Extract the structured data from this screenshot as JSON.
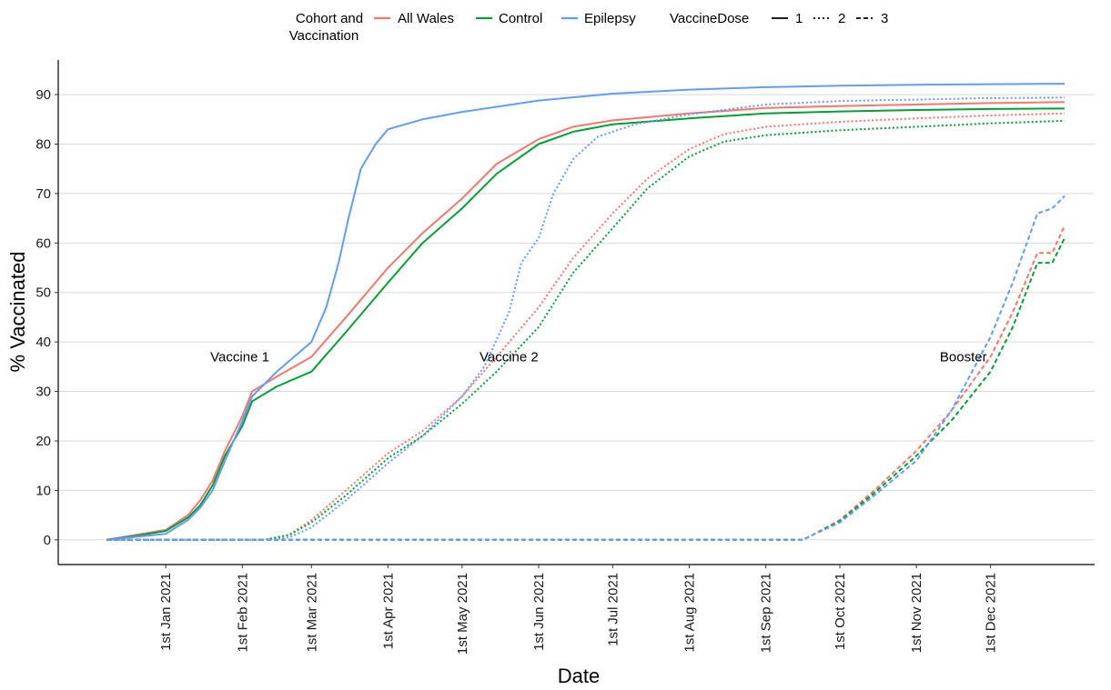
{
  "chart_data": {
    "type": "line",
    "xlabel": "Date",
    "ylabel": "% Vaccinated",
    "x_range": [
      "2020-12-08",
      "2021-12-31"
    ],
    "ylim": [
      -5,
      97
    ],
    "y_ticks": [
      0,
      10,
      20,
      30,
      40,
      50,
      60,
      70,
      80,
      90
    ],
    "x_ticks": [
      {
        "date": "2021-01-01",
        "label": "1st Jan 2021"
      },
      {
        "date": "2021-02-01",
        "label": "1st Feb 2021"
      },
      {
        "date": "2021-03-01",
        "label": "1st Mar 2021"
      },
      {
        "date": "2021-04-01",
        "label": "1st Apr 2021"
      },
      {
        "date": "2021-05-01",
        "label": "1st May 2021"
      },
      {
        "date": "2021-06-01",
        "label": "1st Jun 2021"
      },
      {
        "date": "2021-07-01",
        "label": "1st Jul 2021"
      },
      {
        "date": "2021-08-01",
        "label": "1st Aug 2021"
      },
      {
        "date": "2021-09-01",
        "label": "1st Sep 2021"
      },
      {
        "date": "2021-10-01",
        "label": "1st Oct 2021"
      },
      {
        "date": "2021-11-01",
        "label": "1st Nov 2021"
      },
      {
        "date": "2021-12-01",
        "label": "1st Dec 2021"
      }
    ],
    "grid": "horizontal",
    "legend": {
      "position": "top",
      "cohort_title": "Cohort and Vaccination",
      "cohorts": [
        {
          "name": "All Wales",
          "color": "#F8766D"
        },
        {
          "name": "Control",
          "color": "#00A035"
        },
        {
          "name": "Epilepsy",
          "color": "#619CFF"
        }
      ],
      "dose_title": "VaccineDose",
      "doses": [
        {
          "name": "1",
          "dash": "solid"
        },
        {
          "name": "2",
          "dash": "dotted"
        },
        {
          "name": "3",
          "dash": "dashed"
        }
      ]
    },
    "annotations": [
      {
        "text": "Vaccine 1",
        "date": "2021-01-31",
        "y": 37
      },
      {
        "text": "Vaccine 2",
        "date": "2021-05-20",
        "y": 37
      },
      {
        "text": "Booster",
        "date": "2021-11-20",
        "y": 37
      }
    ],
    "series": [
      {
        "cohort": "All Wales",
        "dose": "1",
        "color": "#F8766D",
        "dash": "solid",
        "points": [
          [
            "2020-12-08",
            0
          ],
          [
            "2020-12-20",
            1
          ],
          [
            "2021-01-01",
            2
          ],
          [
            "2021-01-10",
            5
          ],
          [
            "2021-01-15",
            8
          ],
          [
            "2021-01-20",
            12
          ],
          [
            "2021-01-25",
            18
          ],
          [
            "2021-02-01",
            25
          ],
          [
            "2021-02-05",
            30
          ],
          [
            "2021-02-15",
            33
          ],
          [
            "2021-03-01",
            37
          ],
          [
            "2021-03-15",
            45
          ],
          [
            "2021-04-01",
            55
          ],
          [
            "2021-04-15",
            62
          ],
          [
            "2021-05-01",
            69
          ],
          [
            "2021-05-15",
            76
          ],
          [
            "2021-06-01",
            81
          ],
          [
            "2021-06-15",
            83.5
          ],
          [
            "2021-07-01",
            84.8
          ],
          [
            "2021-08-01",
            86.2
          ],
          [
            "2021-09-01",
            87.3
          ],
          [
            "2021-10-01",
            87.7
          ],
          [
            "2021-11-01",
            88
          ],
          [
            "2021-12-01",
            88.3
          ],
          [
            "2021-12-31",
            88.5
          ]
        ]
      },
      {
        "cohort": "Control",
        "dose": "1",
        "color": "#00A035",
        "dash": "solid",
        "points": [
          [
            "2020-12-08",
            0
          ],
          [
            "2020-12-20",
            0.8
          ],
          [
            "2021-01-01",
            1.8
          ],
          [
            "2021-01-10",
            4.5
          ],
          [
            "2021-01-15",
            7
          ],
          [
            "2021-01-20",
            11
          ],
          [
            "2021-01-25",
            17
          ],
          [
            "2021-02-01",
            23
          ],
          [
            "2021-02-05",
            28
          ],
          [
            "2021-02-15",
            31
          ],
          [
            "2021-03-01",
            34
          ],
          [
            "2021-03-15",
            42
          ],
          [
            "2021-04-01",
            52
          ],
          [
            "2021-04-15",
            60
          ],
          [
            "2021-05-01",
            67
          ],
          [
            "2021-05-15",
            74
          ],
          [
            "2021-06-01",
            80
          ],
          [
            "2021-06-15",
            82.5
          ],
          [
            "2021-07-01",
            84
          ],
          [
            "2021-08-01",
            85.2
          ],
          [
            "2021-09-01",
            86.2
          ],
          [
            "2021-10-01",
            86.6
          ],
          [
            "2021-11-01",
            86.9
          ],
          [
            "2021-12-01",
            87.1
          ],
          [
            "2021-12-31",
            87.2
          ]
        ]
      },
      {
        "cohort": "Epilepsy",
        "dose": "1",
        "color": "#619CFF",
        "dash": "solid",
        "points": [
          [
            "2020-12-08",
            0
          ],
          [
            "2020-12-20",
            0.6
          ],
          [
            "2021-01-01",
            1.2
          ],
          [
            "2021-01-10",
            4
          ],
          [
            "2021-01-15",
            6.5
          ],
          [
            "2021-01-20",
            10
          ],
          [
            "2021-01-25",
            16
          ],
          [
            "2021-02-01",
            24
          ],
          [
            "2021-02-05",
            29
          ],
          [
            "2021-02-15",
            34
          ],
          [
            "2021-03-01",
            40
          ],
          [
            "2021-03-07",
            47
          ],
          [
            "2021-03-12",
            56
          ],
          [
            "2021-03-16",
            65
          ],
          [
            "2021-03-21",
            75
          ],
          [
            "2021-03-27",
            80
          ],
          [
            "2021-04-01",
            83
          ],
          [
            "2021-04-15",
            85
          ],
          [
            "2021-05-01",
            86.5
          ],
          [
            "2021-06-01",
            88.8
          ],
          [
            "2021-07-01",
            90.2
          ],
          [
            "2021-08-01",
            91
          ],
          [
            "2021-09-01",
            91.5
          ],
          [
            "2021-10-01",
            91.8
          ],
          [
            "2021-11-01",
            92
          ],
          [
            "2021-12-01",
            92.1
          ],
          [
            "2021-12-31",
            92.2
          ]
        ]
      },
      {
        "cohort": "All Wales",
        "dose": "2",
        "color": "#F8766D",
        "dash": "dotted",
        "points": [
          [
            "2020-12-08",
            0
          ],
          [
            "2021-02-10",
            0
          ],
          [
            "2021-02-20",
            1
          ],
          [
            "2021-03-01",
            4
          ],
          [
            "2021-03-15",
            10
          ],
          [
            "2021-04-01",
            17.5
          ],
          [
            "2021-04-15",
            22
          ],
          [
            "2021-05-01",
            29
          ],
          [
            "2021-05-15",
            37
          ],
          [
            "2021-06-01",
            47
          ],
          [
            "2021-06-15",
            57
          ],
          [
            "2021-07-01",
            66
          ],
          [
            "2021-07-15",
            73
          ],
          [
            "2021-08-01",
            79
          ],
          [
            "2021-08-15",
            82
          ],
          [
            "2021-09-01",
            83.5
          ],
          [
            "2021-10-01",
            84.5
          ],
          [
            "2021-11-01",
            85.2
          ],
          [
            "2021-12-01",
            85.8
          ],
          [
            "2021-12-31",
            86.2
          ]
        ]
      },
      {
        "cohort": "Control",
        "dose": "2",
        "color": "#00A035",
        "dash": "dotted",
        "points": [
          [
            "2020-12-08",
            0
          ],
          [
            "2021-02-10",
            0
          ],
          [
            "2021-02-20",
            1
          ],
          [
            "2021-03-01",
            3.5
          ],
          [
            "2021-03-15",
            9
          ],
          [
            "2021-04-01",
            16.5
          ],
          [
            "2021-04-15",
            21
          ],
          [
            "2021-05-01",
            27.5
          ],
          [
            "2021-05-15",
            34
          ],
          [
            "2021-06-01",
            43
          ],
          [
            "2021-06-15",
            54
          ],
          [
            "2021-07-01",
            63
          ],
          [
            "2021-07-15",
            71
          ],
          [
            "2021-08-01",
            77.5
          ],
          [
            "2021-08-15",
            80.5
          ],
          [
            "2021-09-01",
            81.8
          ],
          [
            "2021-10-01",
            82.8
          ],
          [
            "2021-11-01",
            83.5
          ],
          [
            "2021-12-01",
            84.2
          ],
          [
            "2021-12-31",
            84.7
          ]
        ]
      },
      {
        "cohort": "Epilepsy",
        "dose": "2",
        "color": "#619CFF",
        "dash": "dotted",
        "points": [
          [
            "2020-12-08",
            0
          ],
          [
            "2021-02-12",
            0
          ],
          [
            "2021-02-20",
            0.5
          ],
          [
            "2021-03-01",
            2.5
          ],
          [
            "2021-03-15",
            8
          ],
          [
            "2021-04-01",
            15.5
          ],
          [
            "2021-04-15",
            21
          ],
          [
            "2021-05-01",
            29
          ],
          [
            "2021-05-10",
            35
          ],
          [
            "2021-05-20",
            46
          ],
          [
            "2021-05-25",
            56
          ],
          [
            "2021-06-01",
            61
          ],
          [
            "2021-06-07",
            70
          ],
          [
            "2021-06-15",
            77
          ],
          [
            "2021-06-25",
            81.5
          ],
          [
            "2021-07-10",
            84
          ],
          [
            "2021-08-01",
            86
          ],
          [
            "2021-09-01",
            88
          ],
          [
            "2021-10-01",
            88.7
          ],
          [
            "2021-11-01",
            89
          ],
          [
            "2021-12-01",
            89.3
          ],
          [
            "2021-12-31",
            89.4
          ]
        ]
      },
      {
        "cohort": "All Wales",
        "dose": "3",
        "color": "#F8766D",
        "dash": "dashed",
        "points": [
          [
            "2020-12-08",
            0
          ],
          [
            "2021-09-16",
            0
          ],
          [
            "2021-09-20",
            1
          ],
          [
            "2021-10-01",
            4
          ],
          [
            "2021-10-15",
            10
          ],
          [
            "2021-11-01",
            18
          ],
          [
            "2021-11-15",
            26
          ],
          [
            "2021-12-01",
            37
          ],
          [
            "2021-12-10",
            46
          ],
          [
            "2021-12-20",
            58
          ],
          [
            "2021-12-26",
            58
          ],
          [
            "2021-12-31",
            63.5
          ]
        ]
      },
      {
        "cohort": "Control",
        "dose": "3",
        "color": "#00A035",
        "dash": "dashed",
        "points": [
          [
            "2020-12-08",
            0
          ],
          [
            "2021-09-16",
            0
          ],
          [
            "2021-09-20",
            1
          ],
          [
            "2021-10-01",
            3.8
          ],
          [
            "2021-10-15",
            9.5
          ],
          [
            "2021-11-01",
            17
          ],
          [
            "2021-11-15",
            24
          ],
          [
            "2021-12-01",
            34
          ],
          [
            "2021-12-10",
            43
          ],
          [
            "2021-12-20",
            56
          ],
          [
            "2021-12-26",
            56
          ],
          [
            "2021-12-31",
            61
          ]
        ]
      },
      {
        "cohort": "Epilepsy",
        "dose": "3",
        "color": "#619CFF",
        "dash": "dashed",
        "points": [
          [
            "2020-12-08",
            0
          ],
          [
            "2021-09-16",
            0
          ],
          [
            "2021-09-20",
            1
          ],
          [
            "2021-10-01",
            3.5
          ],
          [
            "2021-10-15",
            9
          ],
          [
            "2021-11-01",
            16
          ],
          [
            "2021-11-15",
            26
          ],
          [
            "2021-12-01",
            41
          ],
          [
            "2021-12-10",
            52
          ],
          [
            "2021-12-20",
            66
          ],
          [
            "2021-12-26",
            67
          ],
          [
            "2021-12-31",
            69.5
          ]
        ]
      }
    ]
  }
}
